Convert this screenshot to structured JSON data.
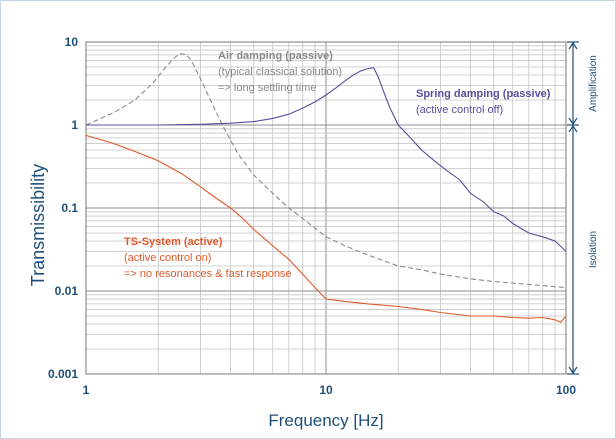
{
  "chart_data": {
    "type": "line",
    "xlabel": "Frequency [Hz]",
    "ylabel": "Transmissibility",
    "x_scale": "log",
    "y_scale": "log",
    "xlim": [
      1,
      100
    ],
    "ylim": [
      0.001,
      10
    ],
    "x_ticks": [
      "1",
      "10",
      "100"
    ],
    "y_ticks": [
      "10",
      "1",
      "0.1",
      "0.01",
      "0.001"
    ],
    "grid": true,
    "series": [
      {
        "name": "Air damping (passive)",
        "color": "#8a8a8a",
        "style": "dashed",
        "x": [
          1,
          1.3,
          1.6,
          1.9,
          2.1,
          2.3,
          2.45,
          2.6,
          2.75,
          3.0,
          3.3,
          3.7,
          4.3,
          5.0,
          6.0,
          7.0,
          8.0,
          10,
          12,
          15,
          20,
          25,
          30,
          40,
          50,
          70,
          100
        ],
        "y": [
          1.0,
          1.4,
          2.0,
          3.2,
          4.6,
          6.2,
          7.2,
          7.1,
          6.0,
          3.6,
          2.0,
          1.0,
          0.45,
          0.25,
          0.15,
          0.1,
          0.075,
          0.045,
          0.035,
          0.027,
          0.02,
          0.018,
          0.016,
          0.014,
          0.013,
          0.012,
          0.011
        ]
      },
      {
        "name": "Spring damping (passive)",
        "color": "#5a4f9e",
        "style": "solid",
        "x": [
          1,
          1.5,
          2,
          3,
          4,
          5,
          6,
          7,
          8,
          9,
          10,
          11,
          12,
          13,
          14,
          15,
          15.8,
          16.5,
          17.5,
          18.5,
          20,
          22,
          25,
          28,
          32,
          36,
          40,
          45,
          50,
          55,
          60,
          70,
          80,
          90,
          100
        ],
        "y": [
          1.0,
          1.0,
          1.0,
          1.02,
          1.05,
          1.1,
          1.2,
          1.35,
          1.6,
          1.9,
          2.3,
          2.8,
          3.4,
          4.0,
          4.5,
          4.8,
          4.9,
          3.8,
          2.4,
          1.6,
          1.0,
          0.75,
          0.5,
          0.38,
          0.28,
          0.22,
          0.15,
          0.12,
          0.09,
          0.08,
          0.065,
          0.05,
          0.045,
          0.04,
          0.03
        ]
      },
      {
        "name": "TS-System (active)",
        "color": "#e05a2b",
        "style": "solid",
        "x": [
          1,
          1.3,
          1.6,
          2,
          2.5,
          3,
          3.5,
          4,
          4.5,
          5,
          6,
          7,
          8,
          9,
          10,
          12,
          15,
          20,
          25,
          30,
          40,
          50,
          60,
          70,
          80,
          90,
          95,
          100
        ],
        "y": [
          0.75,
          0.6,
          0.48,
          0.37,
          0.26,
          0.18,
          0.13,
          0.1,
          0.075,
          0.055,
          0.035,
          0.024,
          0.016,
          0.011,
          0.008,
          0.0075,
          0.007,
          0.0065,
          0.006,
          0.0055,
          0.005,
          0.005,
          0.0048,
          0.0047,
          0.0048,
          0.0045,
          0.0042,
          0.005
        ]
      }
    ],
    "annotations": [
      {
        "id": "air",
        "color": "#8a8a8a",
        "lines": [
          "Air damping (passive)",
          "(typical classical solution)",
          "=> long settling time"
        ]
      },
      {
        "id": "spring",
        "color": "#5a4f9e",
        "lines": [
          "Spring damping (passive)",
          "(active control off)"
        ]
      },
      {
        "id": "ts",
        "color": "#e05a2b",
        "lines": [
          "TS-System (active)",
          "(active control on)",
          " => no resonances & fast response"
        ]
      }
    ],
    "regions": [
      {
        "label": "Amplification",
        "from": 1,
        "to": 10
      },
      {
        "label": "Isolation",
        "from": 0.001,
        "to": 1
      }
    ]
  }
}
